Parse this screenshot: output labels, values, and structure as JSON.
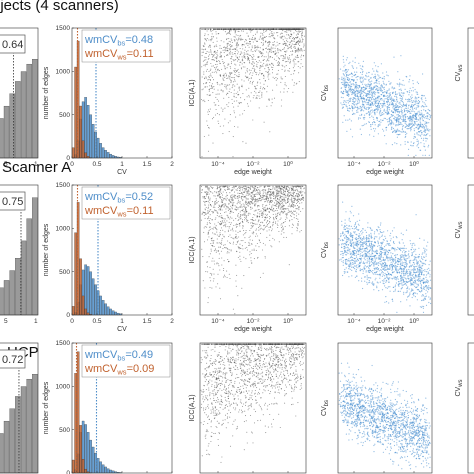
{
  "colors": {
    "bs": "#4f8ec9",
    "ws": "#c1622f",
    "icc_grey": "#444444",
    "hist_grey": "#9a9a9a",
    "cvbs_points": "#4a8fd0"
  },
  "chart_data": [
    {
      "row": 0,
      "row_title": "ojects (4 scanners)",
      "panels": [
        {
          "type": "bar",
          "subject": "ICC histogram (partially cropped)",
          "median_label": "0.64",
          "xticks": [
            "5",
            "1"
          ],
          "bins": [
            0.1,
            0.15,
            0.35,
            0.5,
            0.7,
            0.85,
            1.0
          ],
          "median": 0.64
        },
        {
          "type": "bar",
          "ylabel": "number of edges",
          "xlabel": "CV",
          "xlim": [
            0,
            2
          ],
          "ylim": [
            0,
            1500
          ],
          "yticks": [
            "0",
            "500",
            "1000",
            "1500"
          ],
          "xticks": [
            "0",
            "0.5",
            "1",
            "1.5",
            "2"
          ],
          "legend": [
            {
              "prefix": "wmCV",
              "sub": "bs",
              "value": "=0.48",
              "color": "bs"
            },
            {
              "prefix": "wmCV",
              "sub": "ws",
              "value": "=0.11",
              "color": "ws"
            }
          ],
          "series": [
            {
              "name": "ws",
              "x_step": 0.05,
              "values": [
                120,
                1050,
                1350,
                600,
                200,
                60,
                20,
                5,
                0,
                0,
                0,
                0,
                0,
                0,
                0,
                0,
                0,
                0,
                0,
                0
              ]
            },
            {
              "name": "bs",
              "x_step": 0.05,
              "values": [
                5,
                40,
                200,
                450,
                650,
                700,
                610,
                500,
                390,
                300,
                230,
                170,
                120,
                90,
                65,
                45,
                30,
                20,
                12,
                8
              ]
            }
          ],
          "vlines": [
            0.48,
            0.11
          ]
        },
        {
          "type": "scatter",
          "ylabel": "ICC(A,1)",
          "xlabel": "edge weight",
          "xscale": "log",
          "xticks": [
            "10⁻⁴",
            "10⁻²",
            "10⁰"
          ],
          "yticks": [],
          "pattern": "dense_top"
        },
        {
          "type": "scatter",
          "ylabel": "CV",
          "ylabel_sub": "bs",
          "xlabel": "edge weight",
          "xscale": "log",
          "xticks": [
            "10⁻⁴",
            "10⁻²",
            "10⁰"
          ],
          "yticks": [
            "0",
            "1",
            "2"
          ],
          "pattern": "decreasing"
        },
        {
          "type": "scatter",
          "ylabel": "CV",
          "ylabel_sub": "ws",
          "partial": true
        }
      ]
    },
    {
      "row": 1,
      "row_title": "Scanner A",
      "panels": [
        {
          "type": "bar",
          "median_label": "0.75",
          "xticks": [
            "5",
            "1"
          ],
          "median": 0.75
        },
        {
          "type": "bar",
          "ylabel": "number of edges",
          "xlabel": "CV",
          "xlim": [
            0,
            2
          ],
          "ylim": [
            0,
            1500
          ],
          "yticks": [
            "0",
            "500",
            "1000",
            "1500"
          ],
          "xticks": [
            "0",
            "0.5",
            "1",
            "1.5",
            "2"
          ],
          "legend": [
            {
              "prefix": "wmCV",
              "sub": "bs",
              "value": "=0.52",
              "color": "bs"
            },
            {
              "prefix": "wmCV",
              "sub": "ws",
              "value": "=0.11",
              "color": "ws"
            }
          ],
          "series": [
            {
              "name": "ws",
              "x_step": 0.05,
              "values": [
                100,
                950,
                1300,
                650,
                220,
                70,
                25,
                8,
                0,
                0,
                0,
                0,
                0,
                0,
                0,
                0,
                0,
                0,
                0,
                0
              ]
            },
            {
              "name": "bs",
              "x_step": 0.05,
              "values": [
                5,
                30,
                150,
                350,
                520,
                580,
                560,
                500,
                420,
                350,
                280,
                220,
                170,
                130,
                95,
                70,
                50,
                35,
                22,
                14
              ]
            }
          ],
          "vlines": [
            0.52,
            0.11
          ]
        },
        {
          "type": "scatter",
          "ylabel": "ICC(A,1)",
          "xlabel": "edge weight",
          "xscale": "log",
          "xticks": [
            "10⁻⁴",
            "10⁻²",
            "10⁰"
          ],
          "pattern": "dense_top_strong"
        },
        {
          "type": "scatter",
          "ylabel": "CV",
          "ylabel_sub": "bs",
          "xlabel": "edge weight",
          "xscale": "log",
          "xticks": [
            "10⁻⁴",
            "10⁻²",
            "10⁰"
          ],
          "pattern": "decreasing"
        },
        {
          "type": "scatter",
          "ylabel": "CV",
          "ylabel_sub": "ws",
          "partial": true
        }
      ]
    },
    {
      "row": 2,
      "row_title": "HCP",
      "panels": [
        {
          "type": "bar",
          "median_label": "0.72",
          "xticks": [
            "5",
            "1"
          ],
          "median": 0.72
        },
        {
          "type": "bar",
          "ylabel": "number of edges",
          "xlabel": "CV",
          "xlim": [
            0,
            2
          ],
          "ylim": [
            0,
            1500
          ],
          "yticks": [
            "0",
            "500",
            "1000",
            "1500"
          ],
          "xticks": [
            "0",
            "0.5",
            "1",
            "1.5",
            "2"
          ],
          "legend": [
            {
              "prefix": "wmCV",
              "sub": "bs",
              "value": "=0.49",
              "color": "bs"
            },
            {
              "prefix": "wmCV",
              "sub": "ws",
              "value": "=0.09",
              "color": "ws"
            }
          ],
          "series": [
            {
              "name": "ws",
              "x_step": 0.05,
              "values": [
                150,
                1150,
                1400,
                550,
                160,
                45,
                15,
                4,
                0,
                0,
                0,
                0,
                0,
                0,
                0,
                0,
                0,
                0,
                0,
                0
              ]
            },
            {
              "name": "bs",
              "x_step": 0.05,
              "values": [
                5,
                40,
                220,
                470,
                600,
                560,
                470,
                380,
                300,
                230,
                170,
                130,
                95,
                70,
                50,
                35,
                25,
                16,
                10,
                6
              ]
            }
          ],
          "vlines": [
            0.49,
            0.09
          ]
        },
        {
          "type": "scatter",
          "ylabel": "ICC(A,1)",
          "xlabel": "edge weight",
          "xscale": "log",
          "xticks": [
            "10⁻⁴",
            "10⁻²",
            "10⁰"
          ],
          "pattern": "dense_top"
        },
        {
          "type": "scatter",
          "ylabel": "CV",
          "ylabel_sub": "bs",
          "xlabel": "edge weight",
          "xscale": "log",
          "xticks": [
            "10⁻⁴",
            "10⁻²",
            "10⁰"
          ],
          "pattern": "decreasing"
        },
        {
          "type": "scatter",
          "ylabel": "CV",
          "ylabel_sub": "ws",
          "partial": true
        }
      ]
    }
  ]
}
